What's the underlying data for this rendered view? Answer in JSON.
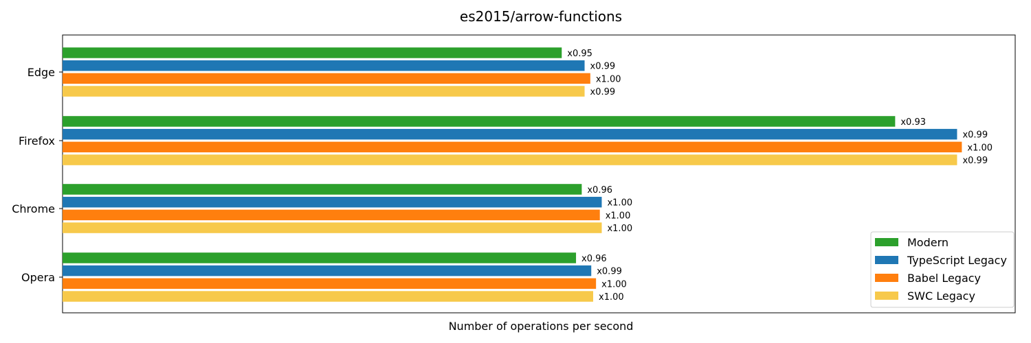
{
  "chart_data": {
    "type": "bar",
    "orientation": "horizontal",
    "title": "es2015/arrow-functions",
    "xlabel": "Number of operations per second",
    "ylabel": "",
    "x_ticks_visible": false,
    "grid": false,
    "legend_position": "bottom-right",
    "categories": [
      "Edge",
      "Firefox",
      "Chrome",
      "Opera"
    ],
    "xlim": [
      0,
      100
    ],
    "series": [
      {
        "name": "Modern",
        "color": "#2ca02c",
        "values": [
          52.4,
          87.4,
          54.5,
          53.9
        ],
        "labels": [
          "x0.95",
          "x0.93",
          "x0.96",
          "x0.96"
        ]
      },
      {
        "name": "TypeScript Legacy",
        "color": "#1f77b4",
        "values": [
          54.8,
          93.9,
          56.6,
          55.5
        ],
        "labels": [
          "x0.99",
          "x0.99",
          "x1.00",
          "x0.99"
        ]
      },
      {
        "name": "Babel Legacy",
        "color": "#ff7f0e",
        "values": [
          55.4,
          94.4,
          56.4,
          56.0
        ],
        "labels": [
          "x1.00",
          "x1.00",
          "x1.00",
          "x1.00"
        ]
      },
      {
        "name": "SWC Legacy",
        "color": "#f7c94b",
        "values": [
          54.8,
          93.9,
          56.6,
          55.7
        ],
        "labels": [
          "x0.99",
          "x0.99",
          "x1.00",
          "x1.00"
        ]
      }
    ]
  }
}
